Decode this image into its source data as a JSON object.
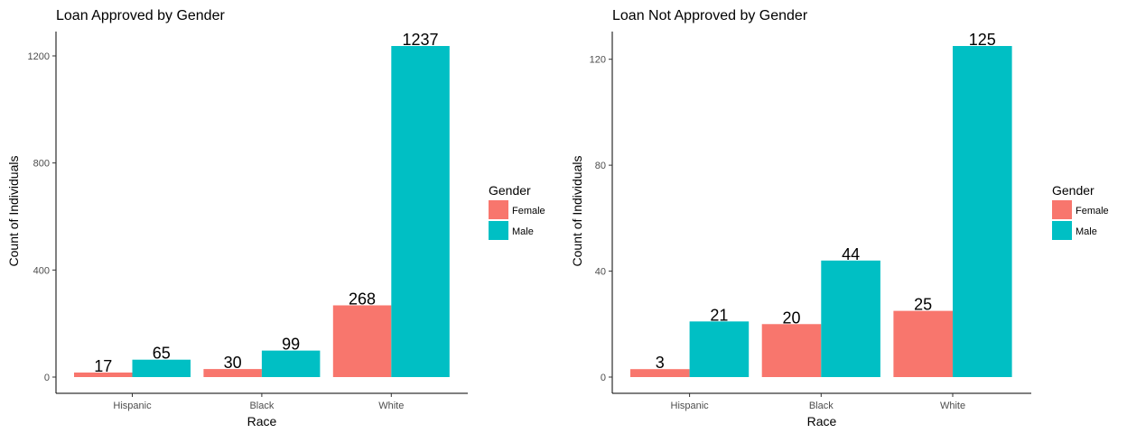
{
  "chart_data": [
    {
      "type": "bar",
      "title": "Loan Approved by Gender",
      "xlabel": "Race",
      "ylabel": "Count of Individuals",
      "categories": [
        "Hispanic",
        "Black",
        "White"
      ],
      "series": [
        {
          "name": "Female",
          "color": "#F8766D",
          "values": [
            17,
            30,
            268
          ]
        },
        {
          "name": "Male",
          "color": "#00BFC4",
          "values": [
            65,
            99,
            1237
          ]
        }
      ],
      "yticks": [
        0,
        400,
        800,
        1200
      ],
      "ylim": [
        0,
        1300
      ],
      "legend": {
        "title": "Gender",
        "position": "right"
      },
      "grid": false
    },
    {
      "type": "bar",
      "title": "Loan Not Approved by Gender",
      "xlabel": "Race",
      "ylabel": "Count of Individuals",
      "categories": [
        "Hispanic",
        "Black",
        "White"
      ],
      "series": [
        {
          "name": "Female",
          "color": "#F8766D",
          "values": [
            3,
            20,
            25
          ]
        },
        {
          "name": "Male",
          "color": "#00BFC4",
          "values": [
            21,
            44,
            125
          ]
        }
      ],
      "yticks": [
        0,
        40,
        80,
        120
      ],
      "ylim": [
        0,
        131.4
      ],
      "legend": {
        "title": "Gender",
        "position": "right"
      },
      "grid": false
    }
  ]
}
